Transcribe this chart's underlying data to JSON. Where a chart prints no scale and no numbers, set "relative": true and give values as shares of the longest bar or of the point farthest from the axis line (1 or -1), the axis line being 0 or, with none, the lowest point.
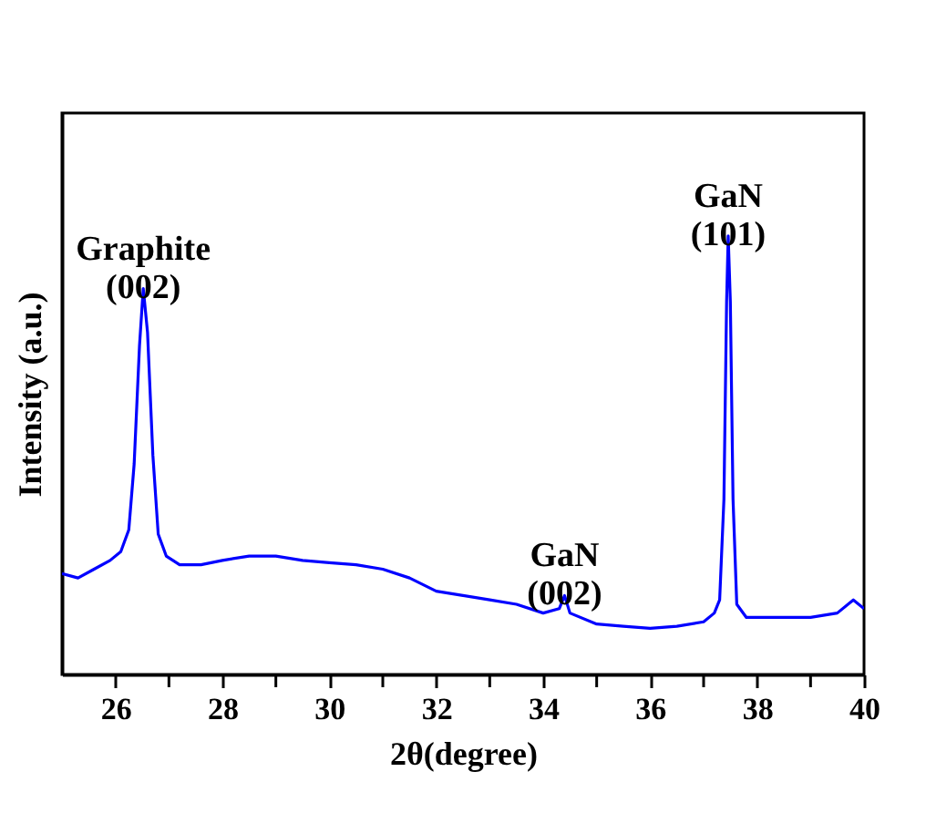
{
  "chart_data": {
    "type": "line",
    "relative": true,
    "xlabel": "2θ(degree)",
    "ylabel": "Intensity (a.u.)",
    "x": [
      25,
      25.3,
      25.6,
      25.9,
      26.1,
      26.25,
      26.35,
      26.45,
      26.52,
      26.6,
      26.7,
      26.8,
      26.95,
      27.2,
      27.6,
      28,
      28.5,
      29,
      29.5,
      30,
      30.5,
      31,
      31.5,
      32,
      32.5,
      33,
      33.5,
      34,
      34.3,
      34.4,
      34.5,
      35,
      35.5,
      36,
      36.5,
      37,
      37.2,
      37.3,
      37.38,
      37.43,
      37.46,
      37.5,
      37.55,
      37.62,
      37.8,
      38.5,
      39,
      39.5,
      39.8,
      40
    ],
    "series": [
      {
        "color": "#0000ff",
        "values": [
          0.23,
          0.22,
          0.24,
          0.26,
          0.28,
          0.33,
          0.48,
          0.75,
          0.88,
          0.78,
          0.5,
          0.32,
          0.27,
          0.25,
          0.25,
          0.26,
          0.27,
          0.27,
          0.26,
          0.255,
          0.25,
          0.24,
          0.22,
          0.19,
          0.18,
          0.17,
          0.16,
          0.14,
          0.15,
          0.18,
          0.14,
          0.115,
          0.11,
          0.105,
          0.11,
          0.12,
          0.14,
          0.17,
          0.4,
          0.85,
          1,
          0.85,
          0.4,
          0.16,
          0.13,
          0.13,
          0.13,
          0.14,
          0.17,
          0.15
        ]
      }
    ],
    "xlim": [
      25,
      40
    ],
    "xticks": [
      26,
      {
        "value": 27,
        "label": null
      },
      28,
      {
        "value": 29,
        "label": null
      },
      30,
      {
        "value": 31,
        "label": null
      },
      32,
      {
        "value": 33,
        "label": null
      },
      34,
      {
        "value": 35,
        "label": null
      },
      36,
      {
        "value": 37,
        "label": null
      },
      38,
      {
        "value": 39,
        "label": null
      },
      40
    ],
    "annotations": [
      {
        "text": "Graphite (002)",
        "x": 26.52,
        "y": 0.88
      },
      {
        "text": "GaN (002)",
        "x": 34.4,
        "y": 0.18
      },
      {
        "text": "GaN (101)",
        "x": 37.46,
        "y": 1
      }
    ],
    "grid": false,
    "legend": false,
    "marker": "none",
    "line_style": "solid"
  }
}
